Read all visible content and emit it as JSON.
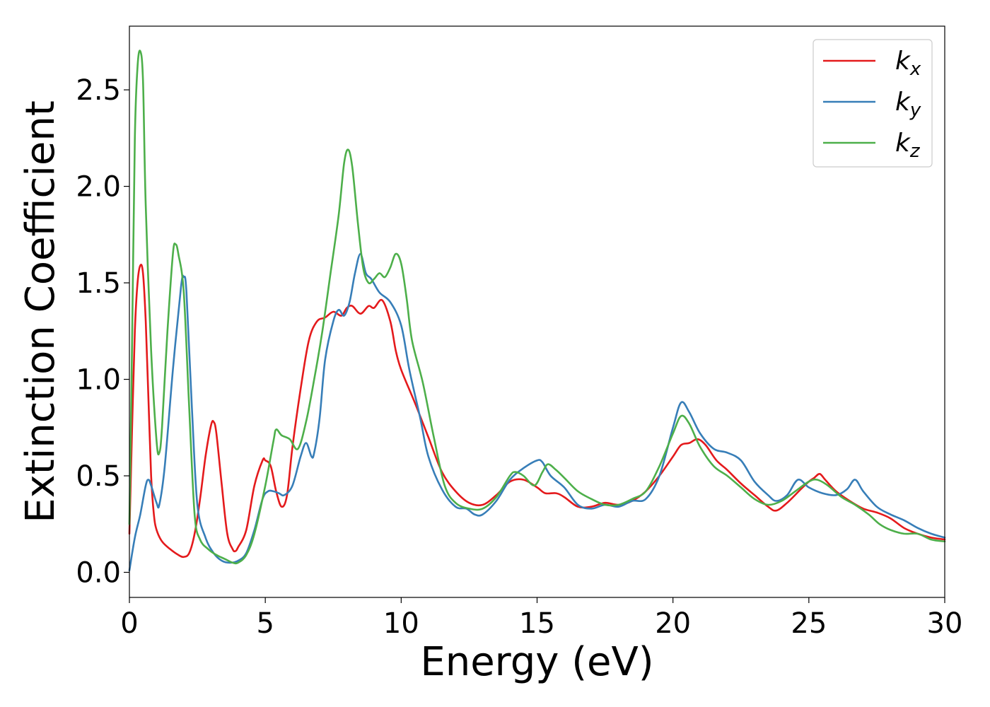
{
  "chart_data": {
    "type": "line",
    "xlabel": "Energy (eV)",
    "ylabel": "Extinction Coefficient",
    "xlim": [
      0,
      30
    ],
    "ylim": [
      -0.13,
      2.83
    ],
    "xticks": [
      0,
      5,
      10,
      15,
      20,
      25,
      30
    ],
    "xtick_labels": [
      "0",
      "5",
      "10",
      "15",
      "20",
      "25",
      "30"
    ],
    "yticks": [
      0.0,
      0.5,
      1.0,
      1.5,
      2.0,
      2.5
    ],
    "ytick_labels": [
      "0.0",
      "0.5",
      "1.0",
      "1.5",
      "2.0",
      "2.5"
    ],
    "grid": false,
    "legend": {
      "position": "top-right"
    },
    "series": [
      {
        "name": "k",
        "subscript": "x",
        "color": "#e41a1c",
        "points": [
          [
            0,
            0.2
          ],
          [
            0.1,
            0.75
          ],
          [
            0.2,
            1.25
          ],
          [
            0.3,
            1.5
          ],
          [
            0.4,
            1.59
          ],
          [
            0.5,
            1.55
          ],
          [
            0.6,
            1.3
          ],
          [
            0.7,
            0.9
          ],
          [
            0.8,
            0.5
          ],
          [
            0.9,
            0.3
          ],
          [
            1.0,
            0.22
          ],
          [
            1.2,
            0.16
          ],
          [
            1.5,
            0.12
          ],
          [
            1.8,
            0.09
          ],
          [
            2.0,
            0.08
          ],
          [
            2.2,
            0.1
          ],
          [
            2.4,
            0.2
          ],
          [
            2.6,
            0.38
          ],
          [
            2.8,
            0.6
          ],
          [
            3.0,
            0.76
          ],
          [
            3.1,
            0.78
          ],
          [
            3.2,
            0.72
          ],
          [
            3.4,
            0.45
          ],
          [
            3.6,
            0.2
          ],
          [
            3.8,
            0.12
          ],
          [
            3.9,
            0.11
          ],
          [
            4.0,
            0.13
          ],
          [
            4.3,
            0.22
          ],
          [
            4.6,
            0.45
          ],
          [
            4.9,
            0.58
          ],
          [
            5.0,
            0.58
          ],
          [
            5.2,
            0.55
          ],
          [
            5.4,
            0.42
          ],
          [
            5.6,
            0.34
          ],
          [
            5.8,
            0.4
          ],
          [
            6.0,
            0.65
          ],
          [
            6.3,
            0.95
          ],
          [
            6.6,
            1.2
          ],
          [
            6.9,
            1.3
          ],
          [
            7.2,
            1.32
          ],
          [
            7.5,
            1.35
          ],
          [
            7.8,
            1.33
          ],
          [
            8.0,
            1.37
          ],
          [
            8.2,
            1.38
          ],
          [
            8.5,
            1.34
          ],
          [
            8.8,
            1.38
          ],
          [
            9.0,
            1.37
          ],
          [
            9.3,
            1.41
          ],
          [
            9.6,
            1.3
          ],
          [
            9.8,
            1.15
          ],
          [
            10.0,
            1.05
          ],
          [
            10.5,
            0.88
          ],
          [
            11.0,
            0.7
          ],
          [
            11.5,
            0.52
          ],
          [
            12.0,
            0.42
          ],
          [
            12.5,
            0.36
          ],
          [
            13.0,
            0.35
          ],
          [
            13.5,
            0.4
          ],
          [
            14.0,
            0.47
          ],
          [
            14.5,
            0.48
          ],
          [
            15.0,
            0.44
          ],
          [
            15.3,
            0.41
          ],
          [
            15.7,
            0.41
          ],
          [
            16.0,
            0.39
          ],
          [
            16.5,
            0.34
          ],
          [
            17.0,
            0.34
          ],
          [
            17.5,
            0.36
          ],
          [
            18.0,
            0.35
          ],
          [
            18.5,
            0.37
          ],
          [
            19.0,
            0.42
          ],
          [
            19.5,
            0.5
          ],
          [
            20.0,
            0.6
          ],
          [
            20.3,
            0.66
          ],
          [
            20.6,
            0.67
          ],
          [
            20.9,
            0.69
          ],
          [
            21.2,
            0.66
          ],
          [
            21.6,
            0.58
          ],
          [
            22.0,
            0.53
          ],
          [
            22.5,
            0.46
          ],
          [
            23.0,
            0.4
          ],
          [
            23.5,
            0.34
          ],
          [
            23.8,
            0.32
          ],
          [
            24.2,
            0.36
          ],
          [
            24.7,
            0.43
          ],
          [
            25.0,
            0.47
          ],
          [
            25.2,
            0.49
          ],
          [
            25.4,
            0.51
          ],
          [
            25.6,
            0.48
          ],
          [
            26.0,
            0.42
          ],
          [
            26.5,
            0.37
          ],
          [
            27.0,
            0.33
          ],
          [
            27.5,
            0.31
          ],
          [
            28.0,
            0.28
          ],
          [
            28.5,
            0.23
          ],
          [
            29.0,
            0.2
          ],
          [
            29.5,
            0.18
          ],
          [
            30.0,
            0.17
          ]
        ]
      },
      {
        "name": "k",
        "subscript": "y",
        "color": "#377eb8",
        "points": [
          [
            0,
            0.01
          ],
          [
            0.2,
            0.18
          ],
          [
            0.4,
            0.3
          ],
          [
            0.6,
            0.45
          ],
          [
            0.7,
            0.48
          ],
          [
            0.8,
            0.45
          ],
          [
            1.0,
            0.36
          ],
          [
            1.1,
            0.35
          ],
          [
            1.3,
            0.55
          ],
          [
            1.6,
            1.05
          ],
          [
            1.9,
            1.48
          ],
          [
            2.0,
            1.53
          ],
          [
            2.1,
            1.45
          ],
          [
            2.3,
            0.85
          ],
          [
            2.5,
            0.35
          ],
          [
            2.8,
            0.18
          ],
          [
            3.1,
            0.1
          ],
          [
            3.4,
            0.06
          ],
          [
            3.7,
            0.05
          ],
          [
            4.0,
            0.06
          ],
          [
            4.3,
            0.1
          ],
          [
            4.6,
            0.22
          ],
          [
            4.9,
            0.38
          ],
          [
            5.1,
            0.42
          ],
          [
            5.3,
            0.42
          ],
          [
            5.5,
            0.41
          ],
          [
            5.7,
            0.4
          ],
          [
            6.0,
            0.45
          ],
          [
            6.3,
            0.6
          ],
          [
            6.5,
            0.67
          ],
          [
            6.7,
            0.6
          ],
          [
            6.8,
            0.62
          ],
          [
            7.0,
            0.8
          ],
          [
            7.2,
            1.1
          ],
          [
            7.5,
            1.3
          ],
          [
            7.7,
            1.36
          ],
          [
            7.9,
            1.33
          ],
          [
            8.1,
            1.4
          ],
          [
            8.3,
            1.55
          ],
          [
            8.5,
            1.65
          ],
          [
            8.7,
            1.55
          ],
          [
            8.9,
            1.52
          ],
          [
            9.2,
            1.45
          ],
          [
            9.6,
            1.4
          ],
          [
            10.0,
            1.28
          ],
          [
            10.3,
            1.05
          ],
          [
            10.7,
            0.8
          ],
          [
            11.0,
            0.6
          ],
          [
            11.5,
            0.43
          ],
          [
            12.0,
            0.34
          ],
          [
            12.4,
            0.33
          ],
          [
            12.7,
            0.3
          ],
          [
            13.0,
            0.3
          ],
          [
            13.5,
            0.37
          ],
          [
            14.0,
            0.48
          ],
          [
            14.5,
            0.54
          ],
          [
            15.0,
            0.58
          ],
          [
            15.2,
            0.57
          ],
          [
            15.5,
            0.5
          ],
          [
            16.0,
            0.44
          ],
          [
            16.5,
            0.35
          ],
          [
            17.0,
            0.33
          ],
          [
            17.5,
            0.35
          ],
          [
            18.0,
            0.34
          ],
          [
            18.5,
            0.37
          ],
          [
            19.0,
            0.38
          ],
          [
            19.5,
            0.5
          ],
          [
            20.0,
            0.75
          ],
          [
            20.3,
            0.88
          ],
          [
            20.6,
            0.83
          ],
          [
            21.0,
            0.72
          ],
          [
            21.5,
            0.64
          ],
          [
            22.0,
            0.62
          ],
          [
            22.5,
            0.58
          ],
          [
            23.0,
            0.47
          ],
          [
            23.5,
            0.4
          ],
          [
            23.8,
            0.37
          ],
          [
            24.2,
            0.4
          ],
          [
            24.6,
            0.48
          ],
          [
            25.0,
            0.44
          ],
          [
            25.5,
            0.41
          ],
          [
            26.0,
            0.4
          ],
          [
            26.4,
            0.43
          ],
          [
            26.7,
            0.48
          ],
          [
            27.0,
            0.42
          ],
          [
            27.5,
            0.34
          ],
          [
            28.0,
            0.3
          ],
          [
            28.5,
            0.27
          ],
          [
            29.0,
            0.23
          ],
          [
            29.5,
            0.2
          ],
          [
            30.0,
            0.18
          ]
        ]
      },
      {
        "name": "k",
        "subscript": "z",
        "color": "#4daf4a",
        "points": [
          [
            0,
            0.25
          ],
          [
            0.1,
            1.2
          ],
          [
            0.2,
            2.25
          ],
          [
            0.3,
            2.62
          ],
          [
            0.4,
            2.7
          ],
          [
            0.5,
            2.55
          ],
          [
            0.6,
            1.9
          ],
          [
            0.8,
            1.15
          ],
          [
            1.0,
            0.68
          ],
          [
            1.1,
            0.62
          ],
          [
            1.2,
            0.75
          ],
          [
            1.4,
            1.25
          ],
          [
            1.6,
            1.65
          ],
          [
            1.7,
            1.7
          ],
          [
            1.8,
            1.65
          ],
          [
            2.0,
            1.45
          ],
          [
            2.2,
            0.85
          ],
          [
            2.4,
            0.3
          ],
          [
            2.6,
            0.17
          ],
          [
            2.9,
            0.12
          ],
          [
            3.2,
            0.09
          ],
          [
            3.5,
            0.07
          ],
          [
            3.8,
            0.05
          ],
          [
            4.0,
            0.05
          ],
          [
            4.3,
            0.09
          ],
          [
            4.6,
            0.2
          ],
          [
            5.0,
            0.45
          ],
          [
            5.3,
            0.68
          ],
          [
            5.4,
            0.74
          ],
          [
            5.6,
            0.71
          ],
          [
            5.9,
            0.69
          ],
          [
            6.2,
            0.64
          ],
          [
            6.5,
            0.78
          ],
          [
            6.8,
            1.0
          ],
          [
            7.1,
            1.25
          ],
          [
            7.4,
            1.55
          ],
          [
            7.7,
            1.85
          ],
          [
            7.9,
            2.12
          ],
          [
            8.05,
            2.19
          ],
          [
            8.2,
            2.1
          ],
          [
            8.4,
            1.82
          ],
          [
            8.6,
            1.58
          ],
          [
            8.8,
            1.5
          ],
          [
            9.0,
            1.52
          ],
          [
            9.2,
            1.55
          ],
          [
            9.4,
            1.53
          ],
          [
            9.6,
            1.58
          ],
          [
            9.8,
            1.65
          ],
          [
            10.0,
            1.6
          ],
          [
            10.2,
            1.42
          ],
          [
            10.4,
            1.2
          ],
          [
            10.8,
            0.98
          ],
          [
            11.2,
            0.7
          ],
          [
            11.6,
            0.45
          ],
          [
            12.0,
            0.36
          ],
          [
            12.5,
            0.33
          ],
          [
            13.0,
            0.33
          ],
          [
            13.5,
            0.39
          ],
          [
            14.0,
            0.5
          ],
          [
            14.2,
            0.52
          ],
          [
            14.5,
            0.5
          ],
          [
            14.9,
            0.45
          ],
          [
            15.2,
            0.52
          ],
          [
            15.4,
            0.56
          ],
          [
            15.7,
            0.53
          ],
          [
            16.0,
            0.49
          ],
          [
            16.5,
            0.42
          ],
          [
            17.0,
            0.38
          ],
          [
            17.5,
            0.35
          ],
          [
            18.0,
            0.35
          ],
          [
            18.5,
            0.38
          ],
          [
            19.0,
            0.42
          ],
          [
            19.5,
            0.55
          ],
          [
            20.0,
            0.72
          ],
          [
            20.3,
            0.81
          ],
          [
            20.6,
            0.77
          ],
          [
            21.0,
            0.65
          ],
          [
            21.5,
            0.55
          ],
          [
            22.0,
            0.5
          ],
          [
            22.5,
            0.44
          ],
          [
            23.0,
            0.38
          ],
          [
            23.5,
            0.35
          ],
          [
            24.0,
            0.37
          ],
          [
            24.5,
            0.42
          ],
          [
            25.0,
            0.47
          ],
          [
            25.3,
            0.48
          ],
          [
            25.7,
            0.45
          ],
          [
            26.2,
            0.39
          ],
          [
            26.7,
            0.35
          ],
          [
            27.2,
            0.3
          ],
          [
            27.6,
            0.25
          ],
          [
            28.0,
            0.22
          ],
          [
            28.5,
            0.2
          ],
          [
            29.0,
            0.2
          ],
          [
            29.5,
            0.17
          ],
          [
            30.0,
            0.16
          ]
        ]
      }
    ]
  }
}
